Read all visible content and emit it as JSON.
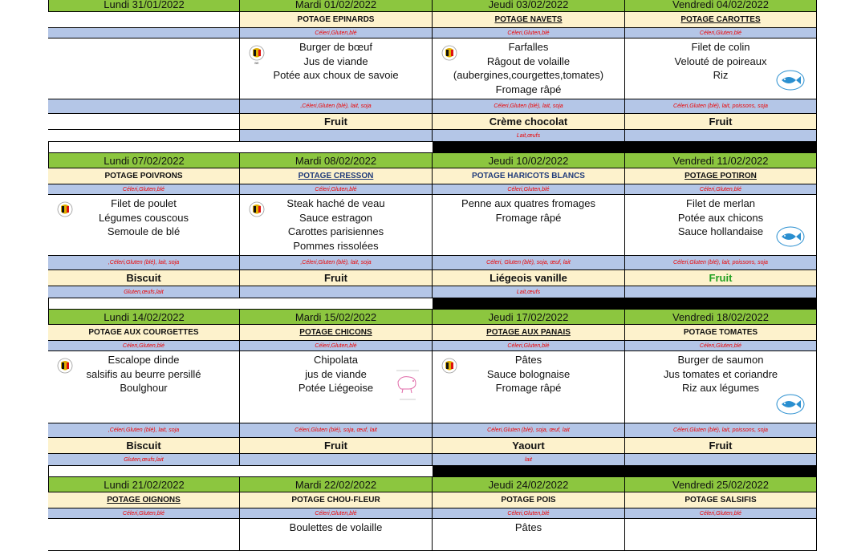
{
  "weeks": [
    {
      "days": [
        "Lundi 31/01/2022",
        "Mardi 01/02/2022",
        "Jeudi 03/02/2022",
        "Vendredi 04/02/2022"
      ],
      "soups": [
        "",
        "POTAGE EPINARDS",
        "POTAGE NAVETS",
        "POTAGE CAROTTES"
      ],
      "soup_allergens": [
        "",
        "Céleri,Gluten,blé",
        "Céleri,Gluten,blé",
        "Céleri,Gluten,blé"
      ],
      "mains": [
        [],
        [
          "Burger de bœuf",
          "Jus de viande",
          "Potée aux choux de savoie"
        ],
        [
          "Farfalles",
          "Râgout de volaille",
          "(aubergines,courgettes,tomates)",
          "Fromage râpé"
        ],
        [
          "Filet de colin",
          "Velouté de poireaux",
          "Riz"
        ]
      ],
      "main_allergens": [
        "",
        ",Céleri,Gluten (blé), lait, soja",
        "Céleri,Gluten (blé), lait, soja",
        "Céleri,Gluten (blé), lait, poissons, soja"
      ],
      "desserts": [
        "",
        "Fruit",
        "Crème chocolat",
        "Fruit"
      ],
      "dessert_allergens": [
        "",
        "",
        "Lait,œufs",
        ""
      ]
    },
    {
      "days": [
        "Lundi 07/02/2022",
        "Mardi 08/02/2022",
        "Jeudi 10/02/2022",
        "Vendredi 11/02/2022"
      ],
      "soups": [
        "POTAGE POIVRONS",
        "POTAGE CRESSON",
        "POTAGE HARICOTS BLANCS",
        "POTAGE POTIRON"
      ],
      "soup_allergens": [
        "Céleri,Gluten,blé",
        "Céleri,Gluten,blé",
        "Céleri,Gluten,blé",
        "Céleri,Gluten,blé"
      ],
      "mains": [
        [
          "Filet de poulet",
          "Légumes couscous",
          "Semoule de blé"
        ],
        [
          "Steak haché de veau",
          "Sauce estragon",
          "Carottes parisiennes",
          "Pommes rissolées"
        ],
        [
          "Penne aux quatres fromages",
          "Fromage râpé"
        ],
        [
          "Filet de merlan",
          "Potée aux chicons",
          "Sauce hollandaise"
        ]
      ],
      "main_allergens": [
        ",Céleri,Gluten (blé), lait, soja",
        ",Céleri,Gluten (blé), lait, soja",
        "Céleri, Gluten (blé), soja, œuf, lait",
        "Céleri,Gluten (blé), lait, poissons, soja"
      ],
      "desserts": [
        "Biscuit",
        "Fruit",
        "Liégeois vanille",
        "Fruit"
      ],
      "dessert_allergens": [
        "Gluten,œufs,lait",
        "",
        "Lait,œufs",
        ""
      ]
    },
    {
      "days": [
        "Lundi 14/02/2022",
        "Mardi 15/02/2022",
        "Jeudi 17/02/2022",
        "Vendredi 18/02/2022"
      ],
      "soups": [
        "POTAGE AUX COURGETTES",
        "POTAGE CHICONS",
        "POTAGE AUX PANAIS",
        "POTAGE TOMATES"
      ],
      "soup_allergens": [
        "Céleri,Gluten,blé",
        "Céleri,Gluten,blé",
        "Céleri,Gluten,blé",
        "Céleri,Gluten,blé"
      ],
      "mains": [
        [
          "Escalope dinde",
          "salsifis au beurre persillé",
          "Boulghour"
        ],
        [
          "Chipolata",
          "jus de viande",
          "Potée Liégeoise"
        ],
        [
          "Pâtes",
          "Sauce bolognaise",
          "Fromage râpé"
        ],
        [
          "Burger de saumon",
          "Jus tomates et coriandre",
          "Riz aux légumes"
        ]
      ],
      "main_allergens": [
        ",Céleri,Gluten (blé), lait, soja",
        "Céleri,Gluten (blé), soja, œuf, lait",
        "Céleri,Gluten (blé), soja, œuf, lait",
        "Céleri,Gluten (blé), lait, poissons, soja"
      ],
      "desserts": [
        "Biscuit",
        "Fruit",
        "Yaourt",
        "Fruit"
      ],
      "dessert_allergens": [
        "Gluten,œufs,lait",
        "",
        "lait",
        ""
      ]
    },
    {
      "days": [
        "Lundi 21/02/2022",
        "Mardi 22/02/2022",
        "Jeudi 24/02/2022",
        "Vendredi 25/02/2022"
      ],
      "soups": [
        "POTAGE OIGNONS",
        "POTAGE CHOU-FLEUR",
        "POTAGE POIS",
        "POTAGE SALSIFIS"
      ],
      "soup_allergens": [
        "Céleri,Gluten,blé",
        "Céleri,Gluten,blé",
        "Céleri,Gluten,blé",
        "Céleri,Gluten,blé"
      ],
      "mains": [
        [],
        [
          "Boulettes  de volaille"
        ],
        [
          "Pâtes"
        ],
        []
      ]
    }
  ],
  "icons": {
    "flag": "belgian-flag-badge-icon",
    "fish": "sustainable-fish-label-icon",
    "pork": "pork-label-icon"
  },
  "colors": {
    "day_header": "#8cc63f",
    "soup_row": "#fdf2cc",
    "allergen_row": "#b4c6e7",
    "allergen_text": "#ee0000",
    "green_fruit": "#22a022"
  }
}
